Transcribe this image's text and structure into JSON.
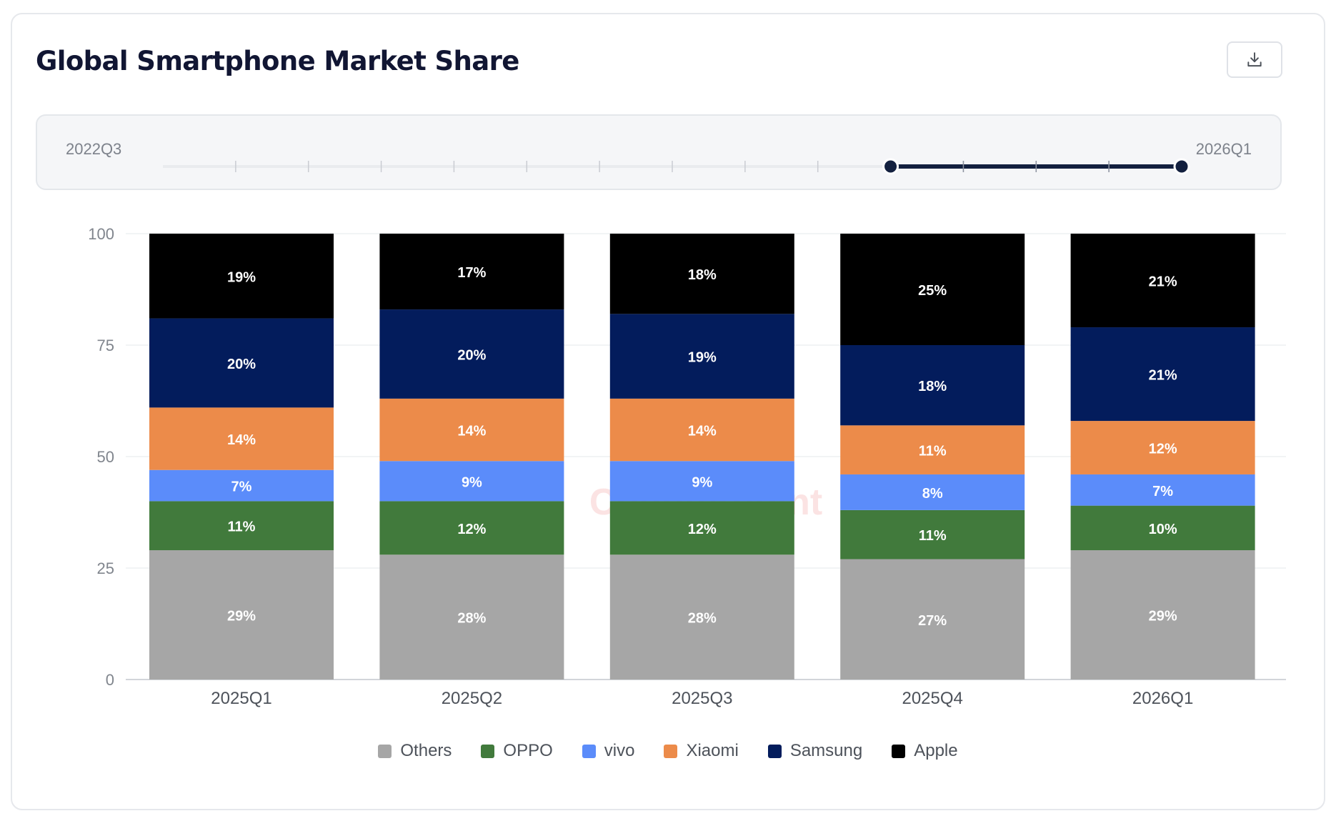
{
  "header": {
    "title": "Global Smartphone Market Share",
    "download_icon": "download-icon"
  },
  "range_slider": {
    "start_label": "2022Q3",
    "end_label": "2026Q1",
    "tick_count": 15,
    "selected_start_index": 10,
    "selected_end_index": 14
  },
  "chart_data": {
    "type": "bar",
    "stacked": true,
    "categories": [
      "2025Q1",
      "2025Q2",
      "2025Q3",
      "2025Q4",
      "2026Q1"
    ],
    "ylim": [
      0,
      100
    ],
    "yticks": [
      0,
      25,
      50,
      75,
      100
    ],
    "grid": true,
    "legend_position": "bottom",
    "watermark": "Counterpoint",
    "series": [
      {
        "name": "Others",
        "color": "#a6a6a6",
        "values": [
          29,
          28,
          28,
          27,
          29
        ]
      },
      {
        "name": "OPPO",
        "color": "#417a3c",
        "values": [
          11,
          12,
          12,
          11,
          10
        ]
      },
      {
        "name": "vivo",
        "color": "#5b8cfa",
        "values": [
          7,
          9,
          9,
          8,
          7
        ]
      },
      {
        "name": "Xiaomi",
        "color": "#ec8b4a",
        "values": [
          14,
          14,
          14,
          11,
          12
        ]
      },
      {
        "name": "Samsung",
        "color": "#031c5c",
        "values": [
          20,
          20,
          19,
          18,
          21
        ]
      },
      {
        "name": "Apple",
        "color": "#000000",
        "values": [
          19,
          17,
          18,
          25,
          21
        ]
      }
    ]
  }
}
